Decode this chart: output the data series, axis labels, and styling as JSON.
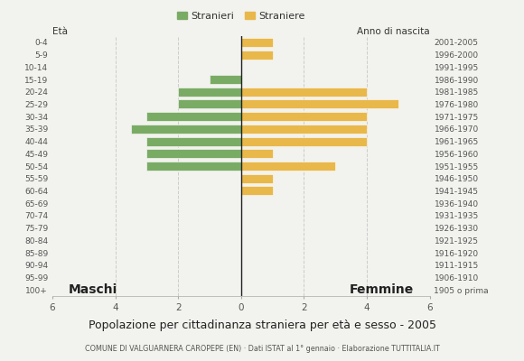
{
  "age_groups": [
    "0-4",
    "5-9",
    "10-14",
    "15-19",
    "20-24",
    "25-29",
    "30-34",
    "35-39",
    "40-44",
    "45-49",
    "50-54",
    "55-59",
    "60-64",
    "65-69",
    "70-74",
    "75-79",
    "80-84",
    "85-89",
    "90-94",
    "95-99",
    "100+"
  ],
  "birth_years": [
    "2001-2005",
    "1996-2000",
    "1991-1995",
    "1986-1990",
    "1981-1985",
    "1976-1980",
    "1971-1975",
    "1966-1970",
    "1961-1965",
    "1956-1960",
    "1951-1955",
    "1946-1950",
    "1941-1945",
    "1936-1940",
    "1931-1935",
    "1926-1930",
    "1921-1925",
    "1916-1920",
    "1911-1915",
    "1906-1910",
    "1905 o prima"
  ],
  "males": [
    0,
    0,
    0,
    1,
    2,
    2,
    3,
    3.5,
    3,
    3,
    3,
    0,
    0,
    0,
    0,
    0,
    0,
    0,
    0,
    0,
    0
  ],
  "females": [
    1,
    1,
    0,
    0,
    4,
    5,
    4,
    4,
    4,
    1,
    3,
    1,
    1,
    0,
    0,
    0,
    0,
    0,
    0,
    0,
    0
  ],
  "male_color": "#7aab65",
  "female_color": "#e8b84b",
  "background_color": "#f2f2ee",
  "grid_color": "#cccccc",
  "title": "Popolazione per cittadinanza straniera per età e sesso - 2005",
  "subtitle": "COMUNE DI VALGUARNERA CAROPEPE (EN) · Dati ISTAT al 1° gennaio · Elaborazione TUTTITALIA.IT",
  "legend_male": "Stranieri",
  "legend_female": "Straniere",
  "label_maschi": "Maschi",
  "label_femmine": "Femmine",
  "xlim": 6
}
